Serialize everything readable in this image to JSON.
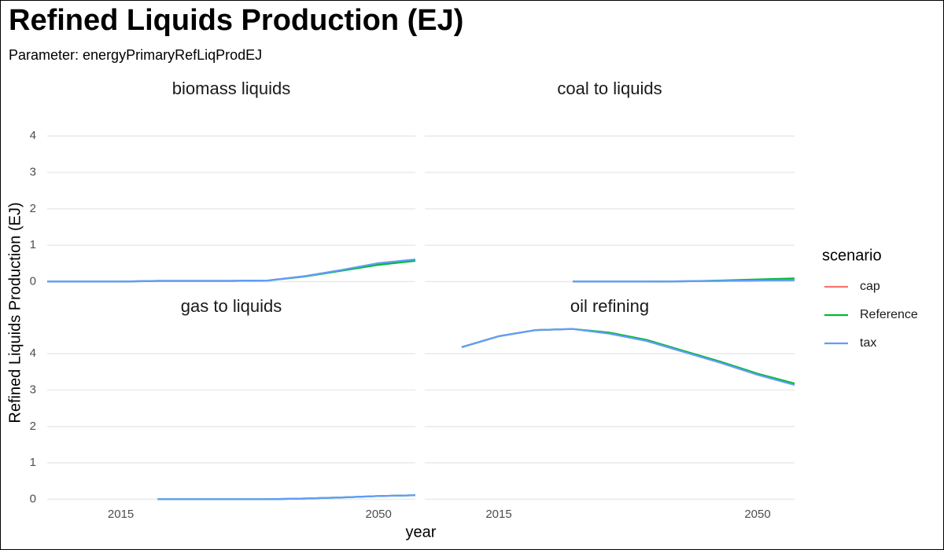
{
  "title": "Refined Liquids Production (EJ)",
  "subtitle": "Parameter: energyPrimaryRefLiqProdEJ",
  "chart_data": {
    "type": "line",
    "facet_by": "technology",
    "xlabel": "year",
    "ylabel": "Refined Liquids Production (EJ)",
    "x_ticks": [
      2015,
      2050
    ],
    "xlim": [
      2005,
      2055
    ],
    "y_ticks": [
      0,
      1,
      2,
      3,
      4
    ],
    "ylim": [
      -0.25,
      4.5
    ],
    "grid": "horizontal major",
    "legend": {
      "title": "scenario",
      "position": "right",
      "entries": [
        {
          "name": "cap",
          "color": "#F8766D"
        },
        {
          "name": "Reference",
          "color": "#00BA38"
        },
        {
          "name": "tax",
          "color": "#619CFF"
        }
      ]
    },
    "panels": [
      {
        "name": "biomass liquids",
        "series": [
          {
            "name": "cap",
            "color": "#F8766D",
            "x": [
              2005,
              2010,
              2015,
              2020,
              2025,
              2030,
              2035,
              2040,
              2045,
              2050,
              2055
            ],
            "y": [
              0.0,
              0.0,
              0.0,
              0.02,
              0.02,
              0.02,
              0.03,
              0.15,
              0.32,
              0.5,
              0.6
            ]
          },
          {
            "name": "Reference",
            "color": "#00BA38",
            "x": [
              2005,
              2010,
              2015,
              2020,
              2025,
              2030,
              2035,
              2040,
              2045,
              2050,
              2055
            ],
            "y": [
              0.0,
              0.0,
              0.0,
              0.02,
              0.02,
              0.02,
              0.03,
              0.14,
              0.3,
              0.46,
              0.57
            ]
          },
          {
            "name": "tax",
            "color": "#619CFF",
            "x": [
              2005,
              2010,
              2015,
              2020,
              2025,
              2030,
              2035,
              2040,
              2045,
              2050,
              2055
            ],
            "y": [
              0.0,
              0.0,
              0.0,
              0.02,
              0.02,
              0.02,
              0.03,
              0.15,
              0.32,
              0.51,
              0.61
            ]
          }
        ]
      },
      {
        "name": "coal to liquids",
        "series": [
          {
            "name": "cap",
            "color": "#F8766D",
            "x": [
              2025,
              2030,
              2035,
              2040,
              2045,
              2050,
              2055
            ],
            "y": [
              0.0,
              0.0,
              0.0,
              0.01,
              0.02,
              0.03,
              0.04
            ]
          },
          {
            "name": "Reference",
            "color": "#00BA38",
            "x": [
              2025,
              2030,
              2035,
              2040,
              2045,
              2050,
              2055
            ],
            "y": [
              0.0,
              0.0,
              0.0,
              0.01,
              0.03,
              0.06,
              0.09
            ]
          },
          {
            "name": "tax",
            "color": "#619CFF",
            "x": [
              2025,
              2030,
              2035,
              2040,
              2045,
              2050,
              2055
            ],
            "y": [
              0.0,
              0.0,
              0.0,
              0.01,
              0.02,
              0.03,
              0.04
            ]
          }
        ]
      },
      {
        "name": "gas to liquids",
        "series": [
          {
            "name": "cap",
            "color": "#F8766D",
            "x": [
              2020,
              2025,
              2030,
              2035,
              2040,
              2045,
              2050,
              2055
            ],
            "y": [
              0.0,
              0.0,
              0.0,
              0.0,
              0.02,
              0.05,
              0.09,
              0.11
            ]
          },
          {
            "name": "Reference",
            "color": "#00BA38",
            "x": [
              2020,
              2025,
              2030,
              2035,
              2040,
              2045,
              2050,
              2055
            ],
            "y": [
              0.0,
              0.0,
              0.0,
              0.0,
              0.02,
              0.05,
              0.09,
              0.11
            ]
          },
          {
            "name": "tax",
            "color": "#619CFF",
            "x": [
              2020,
              2025,
              2030,
              2035,
              2040,
              2045,
              2050,
              2055
            ],
            "y": [
              0.0,
              0.0,
              0.0,
              0.0,
              0.02,
              0.05,
              0.09,
              0.11
            ]
          }
        ]
      },
      {
        "name": "oil refining",
        "series": [
          {
            "name": "cap",
            "color": "#F8766D",
            "x": [
              2010,
              2015,
              2020,
              2025,
              2030,
              2035,
              2040,
              2045,
              2050,
              2055
            ],
            "y": [
              4.18,
              4.48,
              4.65,
              4.68,
              4.55,
              4.35,
              4.05,
              3.75,
              3.42,
              3.15
            ]
          },
          {
            "name": "Reference",
            "color": "#00BA38",
            "x": [
              2010,
              2015,
              2020,
              2025,
              2030,
              2035,
              2040,
              2045,
              2050,
              2055
            ],
            "y": [
              4.18,
              4.48,
              4.65,
              4.68,
              4.58,
              4.38,
              4.08,
              3.78,
              3.45,
              3.18
            ]
          },
          {
            "name": "tax",
            "color": "#619CFF",
            "x": [
              2010,
              2015,
              2020,
              2025,
              2030,
              2035,
              2040,
              2045,
              2050,
              2055
            ],
            "y": [
              4.18,
              4.48,
              4.65,
              4.68,
              4.55,
              4.35,
              4.05,
              3.75,
              3.42,
              3.14
            ]
          }
        ]
      }
    ]
  }
}
